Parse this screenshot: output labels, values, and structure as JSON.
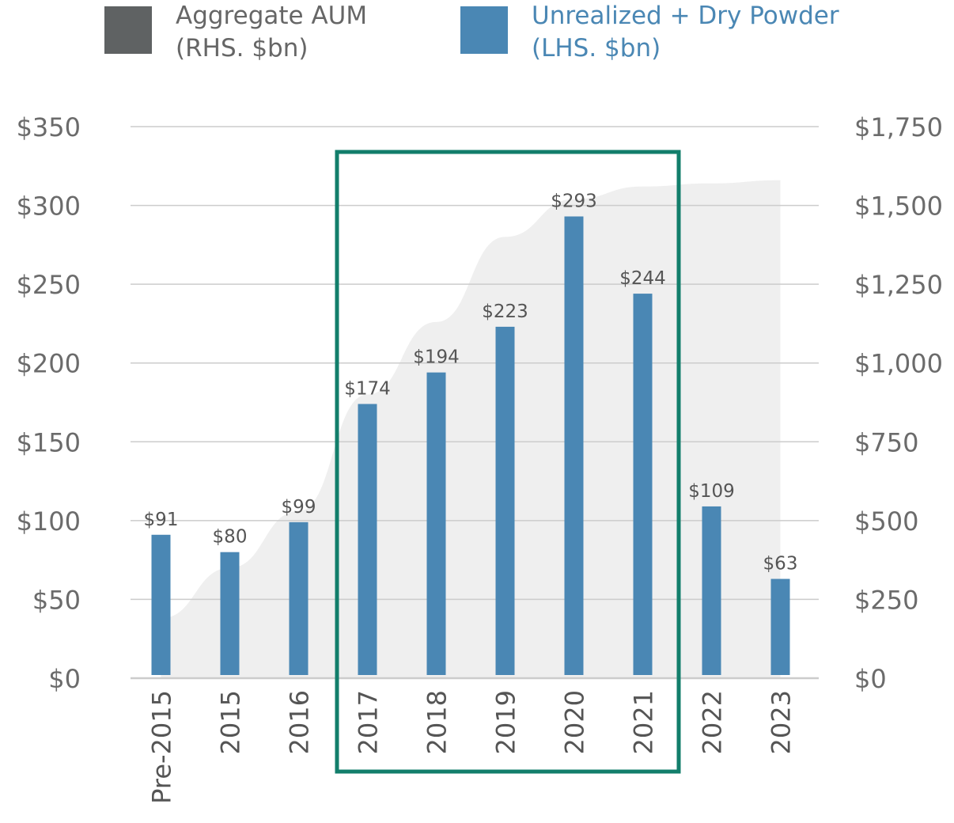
{
  "legend": {
    "aum_line1": "Aggregate AUM",
    "aum_line2": "(RHS. $bn)",
    "unrealized_line1": "Unrealized + Dry Powder",
    "unrealized_line2": "(LHS. $bn)"
  },
  "colors": {
    "bar": "#4a87b4",
    "area": "#efefef",
    "aum_swatch": "#5f6263",
    "unrealized_text": "#4a87b4",
    "legend_text": "#666666",
    "grid": "#cccccc",
    "highlight_box": "#127e6b"
  },
  "chart_data": {
    "type": "bar",
    "categories": [
      "Pre-2015",
      "2015",
      "2016",
      "2017",
      "2018",
      "2019",
      "2020",
      "2021",
      "2022",
      "2023"
    ],
    "series": [
      {
        "name": "Unrealized + Dry Powder",
        "axis": "left",
        "values": [
          91,
          80,
          99,
          174,
          194,
          223,
          293,
          244,
          109,
          63
        ],
        "data_labels": [
          "$91",
          "$80",
          "$99",
          "$174",
          "$194",
          "$223",
          "$293",
          "$244",
          "$109",
          "$63"
        ]
      },
      {
        "name": "Aggregate AUM",
        "axis": "right",
        "type": "area",
        "values": [
          190,
          350,
          530,
          900,
          1130,
          1400,
          1520,
          1560,
          1570,
          1580
        ]
      }
    ],
    "ylim_left": [
      0,
      350
    ],
    "yticks_left": [
      "$0",
      "$50",
      "$100",
      "$150",
      "$200",
      "$250",
      "$300",
      "$350"
    ],
    "ylim_right": [
      0,
      1750
    ],
    "yticks_right": [
      "$0",
      "$250",
      "$500",
      "$750",
      "$1,000",
      "$1,250",
      "$1,500",
      "$1,750"
    ],
    "highlight_range": [
      "2017",
      "2021"
    ],
    "grid": true,
    "legend_position": "top"
  }
}
